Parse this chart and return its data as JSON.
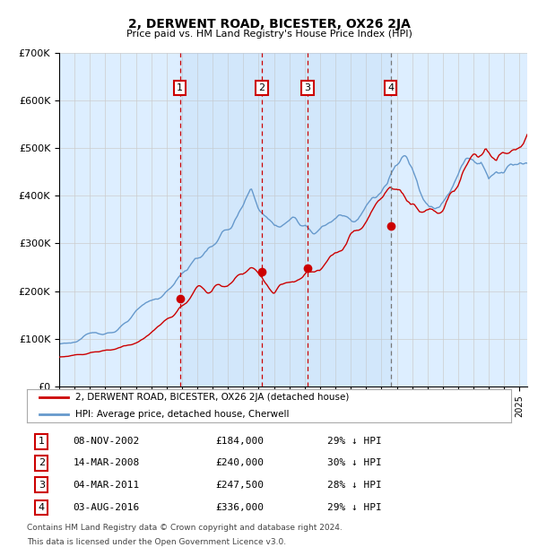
{
  "title": "2, DERWENT ROAD, BICESTER, OX26 2JA",
  "subtitle": "Price paid vs. HM Land Registry's House Price Index (HPI)",
  "transactions": [
    {
      "num": 1,
      "date": "08-NOV-2002",
      "price": 184000,
      "year": 2002.86,
      "pct": "29% ↓ HPI"
    },
    {
      "num": 2,
      "date": "14-MAR-2008",
      "price": 240000,
      "year": 2008.21,
      "pct": "30% ↓ HPI"
    },
    {
      "num": 3,
      "date": "04-MAR-2011",
      "price": 247500,
      "year": 2011.17,
      "pct": "28% ↓ HPI"
    },
    {
      "num": 4,
      "date": "03-AUG-2016",
      "price": 336000,
      "year": 2016.59,
      "pct": "29% ↓ HPI"
    }
  ],
  "legend_label_red": "2, DERWENT ROAD, BICESTER, OX26 2JA (detached house)",
  "legend_label_blue": "HPI: Average price, detached house, Cherwell",
  "footer1": "Contains HM Land Registry data © Crown copyright and database right 2024.",
  "footer2": "This data is licensed under the Open Government Licence v3.0.",
  "red_color": "#cc0000",
  "blue_color": "#6699cc",
  "bg_color": "#ddeeff",
  "ylim": [
    0,
    700000
  ],
  "xlim_start": 1995.0,
  "xlim_end": 2025.5
}
